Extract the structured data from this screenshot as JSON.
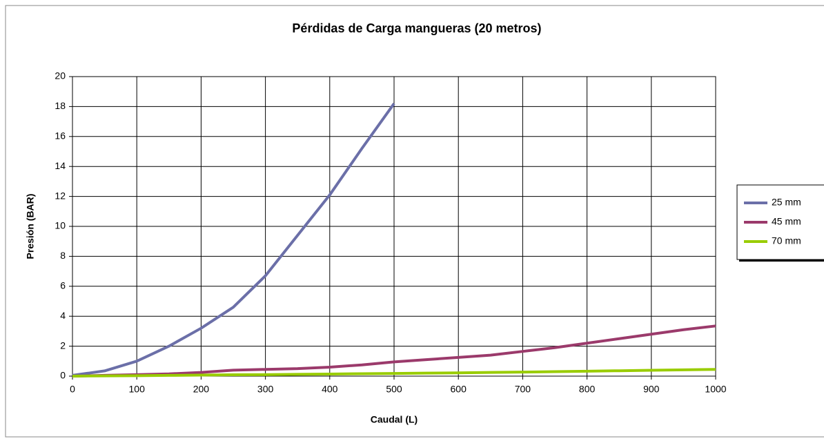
{
  "chart_data": {
    "type": "line",
    "title": "Pérdidas de Carga mangueras (20 metros)",
    "x_label": "Caudal (L)",
    "y_label": "Presión (BAR)",
    "x": [
      0,
      50,
      100,
      150,
      200,
      250,
      300,
      350,
      400,
      450,
      500,
      550,
      600,
      650,
      700,
      750,
      800,
      850,
      900,
      950,
      1000
    ],
    "series": [
      {
        "name": "25 mm",
        "color": "#6b6fa8",
        "values": [
          0.05,
          0.35,
          1.0,
          2.0,
          3.2,
          4.6,
          6.7,
          9.4,
          12.1,
          15.2,
          18.2,
          null,
          null,
          null,
          null,
          null,
          null,
          null,
          null,
          null,
          null
        ]
      },
      {
        "name": "45 mm",
        "color": "#9b3a6b",
        "values": [
          0,
          0.05,
          0.1,
          0.15,
          0.25,
          0.4,
          0.45,
          0.5,
          0.6,
          0.75,
          0.95,
          1.1,
          1.25,
          1.4,
          1.65,
          1.9,
          2.2,
          2.5,
          2.8,
          3.1,
          3.35
        ]
      },
      {
        "name": "70 mm",
        "color": "#99cc00",
        "values": [
          0,
          0.02,
          0.03,
          0.05,
          0.07,
          0.09,
          0.1,
          0.12,
          0.14,
          0.16,
          0.18,
          0.2,
          0.22,
          0.25,
          0.27,
          0.3,
          0.33,
          0.36,
          0.39,
          0.42,
          0.45
        ]
      }
    ],
    "xlim": [
      0,
      1000
    ],
    "xticks": [
      0,
      100,
      200,
      300,
      400,
      500,
      600,
      700,
      800,
      900,
      1000
    ],
    "ylim": [
      0,
      20
    ],
    "yticks": [
      0,
      2,
      4,
      6,
      8,
      10,
      12,
      14,
      16,
      18,
      20
    ],
    "grid": true,
    "legend": "right"
  }
}
